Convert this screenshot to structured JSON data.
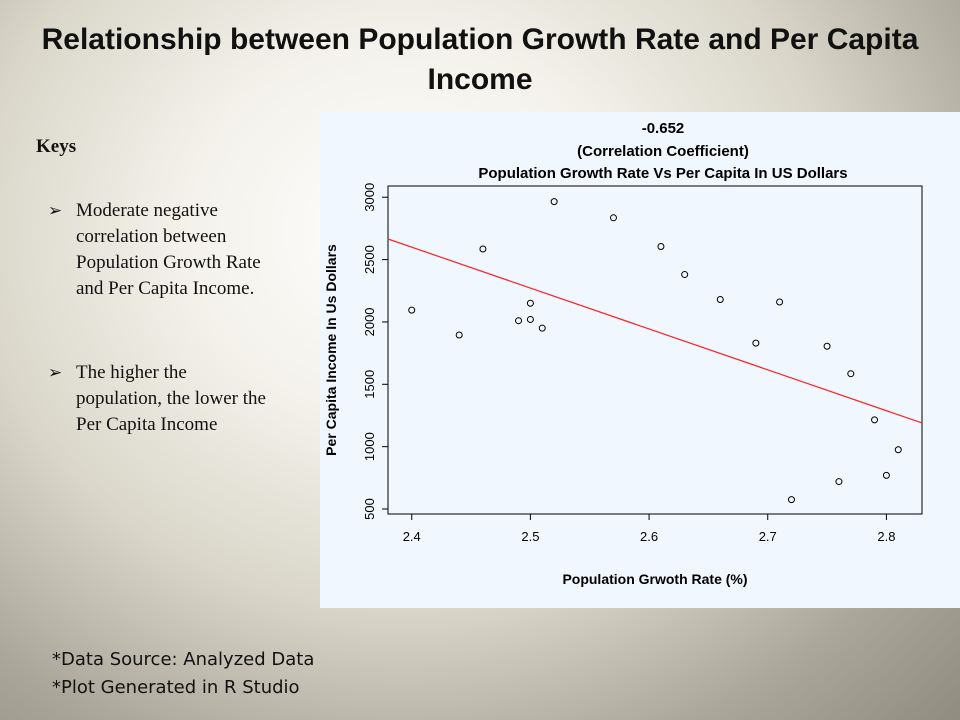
{
  "slide": {
    "title": "Relationship between Population Growth Rate and Per Capita Income"
  },
  "keys": {
    "heading": "Keys",
    "bullets": [
      "Moderate negative correlation between Population Growth Rate and Per Capita Income.",
      "The higher the population, the lower the Per Capita Income"
    ]
  },
  "footnotes": {
    "source": "*Data Source: Analyzed Data",
    "tool": "*Plot Generated in R Studio"
  },
  "chart_data": {
    "type": "scatter",
    "title": "-0.652",
    "subtitle": "(Correlation Coefficient)",
    "subtitle2": "Population Growth Rate Vs Per Capita In US Dollars",
    "xlabel": "Population Grwoth Rate (%)",
    "ylabel": "Per Capita Income In Us Dollars",
    "xlim": [
      2.38,
      2.83
    ],
    "ylim": [
      460,
      3090
    ],
    "xticks": [
      2.4,
      2.5,
      2.6,
      2.7,
      2.8
    ],
    "yticks": [
      500,
      1000,
      1500,
      2000,
      2500,
      3000
    ],
    "grid": false,
    "legend": "none",
    "colors": {
      "points": "#000000",
      "trendline": "#ff2222"
    },
    "points": [
      {
        "x": 2.4,
        "y": 2095
      },
      {
        "x": 2.44,
        "y": 1895
      },
      {
        "x": 2.46,
        "y": 2585
      },
      {
        "x": 2.49,
        "y": 2010
      },
      {
        "x": 2.5,
        "y": 2150
      },
      {
        "x": 2.5,
        "y": 2020
      },
      {
        "x": 2.51,
        "y": 1950
      },
      {
        "x": 2.52,
        "y": 2965
      },
      {
        "x": 2.57,
        "y": 2835
      },
      {
        "x": 2.61,
        "y": 2605
      },
      {
        "x": 2.63,
        "y": 2380
      },
      {
        "x": 2.66,
        "y": 2180
      },
      {
        "x": 2.69,
        "y": 1830
      },
      {
        "x": 2.71,
        "y": 2160
      },
      {
        "x": 2.72,
        "y": 575
      },
      {
        "x": 2.75,
        "y": 1805
      },
      {
        "x": 2.76,
        "y": 720
      },
      {
        "x": 2.77,
        "y": 1585
      },
      {
        "x": 2.79,
        "y": 1215
      },
      {
        "x": 2.8,
        "y": 770
      },
      {
        "x": 2.81,
        "y": 975
      }
    ],
    "trendline": {
      "x": [
        2.38,
        2.83
      ],
      "y": [
        2665,
        1190
      ]
    }
  }
}
